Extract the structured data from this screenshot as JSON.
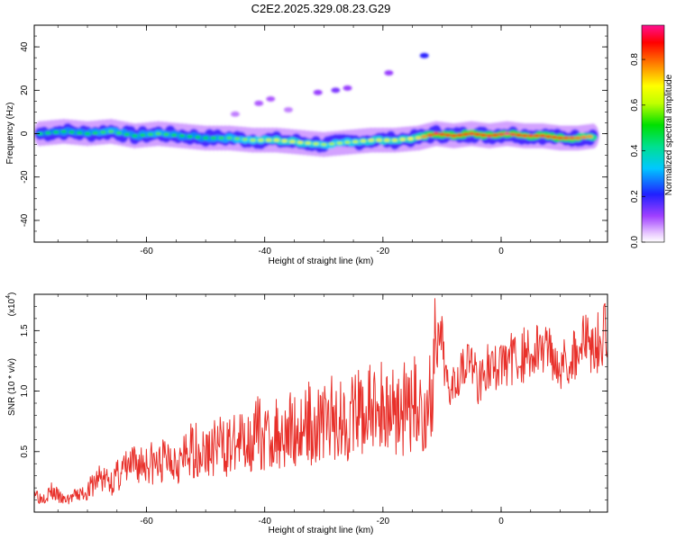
{
  "title": "C2E2.2025.329.08.23.G29",
  "chart_data": [
    {
      "type": "heatmap",
      "xlabel": "Height of straight line (km)",
      "ylabel": "Frequency (Hz)",
      "xlim": [
        -79,
        18
      ],
      "ylim": [
        -50,
        50
      ],
      "xticks": [
        -60,
        -40,
        -20,
        0
      ],
      "yticks": [
        -40,
        -20,
        0,
        20,
        40
      ],
      "colorbar": {
        "label": "Normalized spectral amplitude",
        "range": [
          0.0,
          0.95
        ],
        "ticks": [
          "0.0",
          "0.2",
          "0.4",
          "0.6",
          "0.8"
        ],
        "tick_values": [
          0.0,
          0.2,
          0.4,
          0.6,
          0.8
        ]
      },
      "ridge": [
        {
          "x": -78,
          "y": 0,
          "a": 0.45
        },
        {
          "x": -74,
          "y": 1,
          "a": 0.5
        },
        {
          "x": -70,
          "y": 0,
          "a": 0.5
        },
        {
          "x": -66,
          "y": 1,
          "a": 0.55
        },
        {
          "x": -62,
          "y": -1,
          "a": 0.5
        },
        {
          "x": -58,
          "y": 0,
          "a": 0.55
        },
        {
          "x": -54,
          "y": -1,
          "a": 0.5
        },
        {
          "x": -50,
          "y": -2,
          "a": 0.5
        },
        {
          "x": -46,
          "y": -2,
          "a": 0.55
        },
        {
          "x": -42,
          "y": -3,
          "a": 0.6
        },
        {
          "x": -38,
          "y": -3,
          "a": 0.65
        },
        {
          "x": -34,
          "y": -4,
          "a": 0.65
        },
        {
          "x": -30,
          "y": -5,
          "a": 0.6
        },
        {
          "x": -26,
          "y": -4,
          "a": 0.6
        },
        {
          "x": -22,
          "y": -3,
          "a": 0.65
        },
        {
          "x": -18,
          "y": -3,
          "a": 0.65
        },
        {
          "x": -14,
          "y": -2,
          "a": 0.7
        },
        {
          "x": -11,
          "y": 0,
          "a": 0.9
        },
        {
          "x": -8,
          "y": -1,
          "a": 0.85
        },
        {
          "x": -5,
          "y": 0,
          "a": 0.9
        },
        {
          "x": -2,
          "y": -1,
          "a": 0.85
        },
        {
          "x": 1,
          "y": 0,
          "a": 0.95
        },
        {
          "x": 4,
          "y": -1,
          "a": 0.85
        },
        {
          "x": 7,
          "y": -1,
          "a": 0.85
        },
        {
          "x": 10,
          "y": -2,
          "a": 0.85
        },
        {
          "x": 13,
          "y": -2,
          "a": 0.8
        },
        {
          "x": 16,
          "y": -1,
          "a": 0.75
        }
      ],
      "faint_features": [
        {
          "x": -41,
          "y": 14,
          "a": 0.1
        },
        {
          "x": -39,
          "y": 16,
          "a": 0.1
        },
        {
          "x": -31,
          "y": 19,
          "a": 0.12
        },
        {
          "x": -28,
          "y": 20,
          "a": 0.14
        },
        {
          "x": -26,
          "y": 21,
          "a": 0.12
        },
        {
          "x": -19,
          "y": 28,
          "a": 0.12
        },
        {
          "x": -13,
          "y": 36,
          "a": 0.2
        },
        {
          "x": -36,
          "y": 11,
          "a": 0.08
        },
        {
          "x": -45,
          "y": 9,
          "a": 0.08
        }
      ]
    },
    {
      "type": "line",
      "xlabel": "Height of straight line (km)",
      "ylabel": "SNR (10 * v/v)",
      "yscale_label": "(x10",
      "yscale_exponent": "4",
      "xlim": [
        -79,
        18
      ],
      "ylim": [
        0,
        1.8
      ],
      "xticks": [
        -60,
        -40,
        -20,
        0
      ],
      "yticks": [
        0.5,
        1.0,
        1.5
      ],
      "ytick_labels": [
        "0.5",
        "1.0",
        "1.5"
      ],
      "color": "#e8302a",
      "series": [
        {
          "name": "SNR",
          "points": [
            [
              -79,
              0.2
            ],
            [
              -78,
              0.12
            ],
            [
              -76,
              0.18
            ],
            [
              -74,
              0.1
            ],
            [
              -72,
              0.14
            ],
            [
              -70,
              0.18
            ],
            [
              -68,
              0.3
            ],
            [
              -66,
              0.26
            ],
            [
              -64,
              0.36
            ],
            [
              -62,
              0.4
            ],
            [
              -60,
              0.44
            ],
            [
              -58,
              0.4
            ],
            [
              -56,
              0.5
            ],
            [
              -54,
              0.44
            ],
            [
              -52,
              0.55
            ],
            [
              -50,
              0.5
            ],
            [
              -48,
              0.58
            ],
            [
              -46,
              0.56
            ],
            [
              -44,
              0.6
            ],
            [
              -42,
              0.64
            ],
            [
              -41,
              0.7
            ],
            [
              -40,
              0.62
            ],
            [
              -38,
              0.68
            ],
            [
              -36,
              0.72
            ],
            [
              -34,
              0.7
            ],
            [
              -33,
              0.8
            ],
            [
              -32,
              0.74
            ],
            [
              -30,
              0.78
            ],
            [
              -28,
              0.82
            ],
            [
              -26,
              0.8
            ],
            [
              -24,
              0.85
            ],
            [
              -22,
              0.88
            ],
            [
              -20,
              0.9
            ],
            [
              -18,
              0.92
            ],
            [
              -16,
              0.88
            ],
            [
              -14,
              0.95
            ],
            [
              -13,
              0.8
            ],
            [
              -12,
              0.98
            ],
            [
              -11,
              1.35
            ],
            [
              -10,
              1.4
            ],
            [
              -9,
              1.05
            ],
            [
              -8,
              1.15
            ],
            [
              -7,
              1.2
            ],
            [
              -6,
              1.3
            ],
            [
              -5,
              1.25
            ],
            [
              -4,
              1.1
            ],
            [
              -3,
              1.18
            ],
            [
              -2,
              1.22
            ],
            [
              -1,
              1.2
            ],
            [
              0,
              1.25
            ],
            [
              2,
              1.3
            ],
            [
              4,
              1.32
            ],
            [
              6,
              1.35
            ],
            [
              8,
              1.4
            ],
            [
              10,
              1.25
            ],
            [
              12,
              1.3
            ],
            [
              14,
              1.45
            ],
            [
              16,
              1.4
            ],
            [
              18,
              1.55
            ]
          ]
        }
      ]
    }
  ]
}
